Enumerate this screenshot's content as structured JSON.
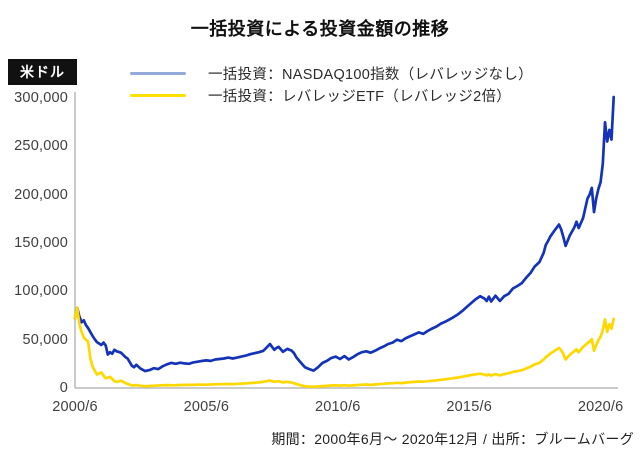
{
  "page": {
    "title": "一括投資による投資金額の推移",
    "unit_badge": "米ドル",
    "footer": "期間：2000年6月～ 2020年12月 / 出所：ブルームバーグ"
  },
  "legend": [
    {
      "label": "一括投資：NASDAQ100指数（レバレッジなし）",
      "swatch_color": "#93a9dc"
    },
    {
      "label": "一括投資：レバレッジETF（レバレッジ2倍）",
      "swatch_color": "#ffe000"
    }
  ],
  "colors": {
    "nasdaq_line": "#1433b8",
    "leveraged_etf_line": "#ffd800",
    "axis": "#b8b8b8",
    "badge_bg": "#111111",
    "badge_text": "#ffffff"
  },
  "chart_data": {
    "type": "line",
    "title": "一括投資による投資金額の推移",
    "ylabel": "米ドル",
    "grid": false,
    "legend_position": "top",
    "x_axis": {
      "unit": "months since 2000/6",
      "range_months": [
        0,
        246
      ],
      "tick_months": [
        0,
        60,
        120,
        180,
        240
      ],
      "tick_labels": [
        "2000/6",
        "2005/6",
        "2010/6",
        "2015/6",
        "2020/6"
      ]
    },
    "y_axis": {
      "range": [
        0,
        300000
      ],
      "tick_values": [
        0,
        50000,
        100000,
        150000,
        200000,
        250000,
        300000
      ],
      "tick_labels": [
        "0",
        "50,000",
        "100,000",
        "150,000",
        "200,000",
        "250,000",
        "300,000"
      ]
    },
    "series": [
      {
        "name": "一括投資：NASDAQ100指数（レバレッジなし）",
        "color": "#1433b8",
        "points": [
          [
            0,
            72000
          ],
          [
            1,
            83000
          ],
          [
            2,
            74000
          ],
          [
            3,
            68000
          ],
          [
            4,
            70000
          ],
          [
            5,
            65000
          ],
          [
            6,
            62000
          ],
          [
            8,
            54000
          ],
          [
            9,
            50500
          ],
          [
            10,
            47500
          ],
          [
            11,
            46000
          ],
          [
            12,
            44500
          ],
          [
            13,
            47000
          ],
          [
            14,
            44000
          ],
          [
            15,
            34500
          ],
          [
            16,
            37000
          ],
          [
            17,
            35500
          ],
          [
            18,
            39500
          ],
          [
            19,
            38000
          ],
          [
            21,
            36500
          ],
          [
            23,
            32000
          ],
          [
            24,
            30500
          ],
          [
            26,
            23000
          ],
          [
            27,
            21500
          ],
          [
            28,
            24000
          ],
          [
            30,
            20000
          ],
          [
            32,
            17500
          ],
          [
            34,
            18500
          ],
          [
            36,
            20500
          ],
          [
            38,
            19500
          ],
          [
            40,
            22500
          ],
          [
            42,
            24500
          ],
          [
            44,
            26000
          ],
          [
            46,
            25000
          ],
          [
            48,
            26200
          ],
          [
            50,
            25500
          ],
          [
            52,
            25000
          ],
          [
            54,
            26500
          ],
          [
            56,
            27200
          ],
          [
            58,
            28000
          ],
          [
            60,
            28500
          ],
          [
            62,
            28000
          ],
          [
            64,
            29500
          ],
          [
            66,
            30000
          ],
          [
            68,
            30500
          ],
          [
            70,
            31500
          ],
          [
            72,
            30500
          ],
          [
            74,
            31500
          ],
          [
            76,
            32500
          ],
          [
            78,
            33500
          ],
          [
            80,
            35000
          ],
          [
            82,
            36000
          ],
          [
            84,
            37000
          ],
          [
            86,
            38500
          ],
          [
            88,
            43000
          ],
          [
            89,
            45500
          ],
          [
            90,
            42500
          ],
          [
            91,
            39500
          ],
          [
            92,
            41500
          ],
          [
            93,
            42500
          ],
          [
            95,
            37500
          ],
          [
            97,
            40500
          ],
          [
            99,
            38500
          ],
          [
            100,
            36000
          ],
          [
            101,
            32000
          ],
          [
            103,
            26500
          ],
          [
            105,
            21500
          ],
          [
            107,
            19500
          ],
          [
            109,
            18000
          ],
          [
            111,
            21500
          ],
          [
            113,
            26000
          ],
          [
            115,
            28000
          ],
          [
            117,
            31000
          ],
          [
            119,
            32500
          ],
          [
            121,
            30000
          ],
          [
            123,
            33000
          ],
          [
            125,
            29500
          ],
          [
            127,
            32000
          ],
          [
            129,
            35000
          ],
          [
            131,
            37000
          ],
          [
            133,
            38000
          ],
          [
            135,
            36500
          ],
          [
            137,
            38500
          ],
          [
            139,
            41000
          ],
          [
            141,
            43000
          ],
          [
            143,
            45500
          ],
          [
            145,
            47000
          ],
          [
            147,
            50000
          ],
          [
            149,
            48500
          ],
          [
            151,
            51500
          ],
          [
            153,
            53500
          ],
          [
            155,
            55500
          ],
          [
            157,
            57500
          ],
          [
            159,
            56000
          ],
          [
            161,
            59000
          ],
          [
            163,
            61500
          ],
          [
            165,
            63500
          ],
          [
            167,
            66500
          ],
          [
            169,
            68500
          ],
          [
            171,
            71000
          ],
          [
            173,
            73500
          ],
          [
            175,
            76500
          ],
          [
            177,
            80000
          ],
          [
            179,
            84000
          ],
          [
            181,
            88000
          ],
          [
            183,
            92000
          ],
          [
            185,
            95000
          ],
          [
            187,
            92500
          ],
          [
            188,
            90000
          ],
          [
            189,
            94500
          ],
          [
            190,
            89500
          ],
          [
            192,
            95500
          ],
          [
            194,
            90000
          ],
          [
            196,
            95000
          ],
          [
            198,
            97500
          ],
          [
            200,
            103000
          ],
          [
            202,
            105500
          ],
          [
            204,
            108500
          ],
          [
            206,
            114000
          ],
          [
            208,
            119000
          ],
          [
            210,
            126000
          ],
          [
            212,
            130000
          ],
          [
            213,
            135000
          ],
          [
            214,
            140000
          ],
          [
            215,
            148000
          ],
          [
            216,
            152000
          ],
          [
            217,
            156500
          ],
          [
            219,
            163000
          ],
          [
            221,
            169000
          ],
          [
            222,
            164000
          ],
          [
            223,
            156000
          ],
          [
            224,
            147000
          ],
          [
            226,
            158000
          ],
          [
            228,
            166000
          ],
          [
            229,
            172000
          ],
          [
            230,
            165500
          ],
          [
            232,
            176000
          ],
          [
            234,
            196000
          ],
          [
            235,
            200000
          ],
          [
            236,
            207000
          ],
          [
            237,
            182000
          ],
          [
            238,
            196000
          ],
          [
            239,
            206000
          ],
          [
            240,
            213000
          ],
          [
            241,
            232000
          ],
          [
            242,
            275000
          ],
          [
            243,
            255000
          ],
          [
            244,
            267000
          ],
          [
            245,
            257000
          ],
          [
            246,
            301000
          ]
        ]
      },
      {
        "name": "一括投資：レバレッジETF（レバレッジ2倍）",
        "color": "#ffd800",
        "points": [
          [
            0,
            72000
          ],
          [
            1,
            83000
          ],
          [
            2,
            66000
          ],
          [
            3,
            58000
          ],
          [
            4,
            52000
          ],
          [
            6,
            48000
          ],
          [
            7,
            31000
          ],
          [
            8,
            22500
          ],
          [
            9,
            18000
          ],
          [
            10,
            14000
          ],
          [
            12,
            16000
          ],
          [
            14,
            10000
          ],
          [
            16,
            11500
          ],
          [
            18,
            7000
          ],
          [
            19,
            6200
          ],
          [
            21,
            7600
          ],
          [
            23,
            5200
          ],
          [
            24,
            4200
          ],
          [
            26,
            2600
          ],
          [
            28,
            3000
          ],
          [
            30,
            2300
          ],
          [
            32,
            1900
          ],
          [
            34,
            2100
          ],
          [
            36,
            2400
          ],
          [
            39,
            2700
          ],
          [
            42,
            3000
          ],
          [
            45,
            2800
          ],
          [
            48,
            3100
          ],
          [
            51,
            3300
          ],
          [
            54,
            3200
          ],
          [
            57,
            3500
          ],
          [
            60,
            3400
          ],
          [
            63,
            3700
          ],
          [
            66,
            3900
          ],
          [
            69,
            4100
          ],
          [
            72,
            4000
          ],
          [
            75,
            4400
          ],
          [
            78,
            4800
          ],
          [
            81,
            5300
          ],
          [
            84,
            5800
          ],
          [
            87,
            6800
          ],
          [
            89,
            7800
          ],
          [
            91,
            6400
          ],
          [
            93,
            7000
          ],
          [
            95,
            5800
          ],
          [
            97,
            6400
          ],
          [
            99,
            5600
          ],
          [
            101,
            4200
          ],
          [
            103,
            2800
          ],
          [
            105,
            1900
          ],
          [
            107,
            1500
          ],
          [
            109,
            1300
          ],
          [
            111,
            1600
          ],
          [
            113,
            2000
          ],
          [
            115,
            2300
          ],
          [
            117,
            2600
          ],
          [
            119,
            2800
          ],
          [
            121,
            2500
          ],
          [
            123,
            2900
          ],
          [
            125,
            2400
          ],
          [
            127,
            2700
          ],
          [
            129,
            3100
          ],
          [
            131,
            3400
          ],
          [
            133,
            3600
          ],
          [
            135,
            3200
          ],
          [
            137,
            3600
          ],
          [
            139,
            4000
          ],
          [
            141,
            4400
          ],
          [
            143,
            4800
          ],
          [
            145,
            5000
          ],
          [
            147,
            5400
          ],
          [
            149,
            5100
          ],
          [
            151,
            5600
          ],
          [
            153,
            6000
          ],
          [
            155,
            6300
          ],
          [
            157,
            6700
          ],
          [
            159,
            6400
          ],
          [
            161,
            7000
          ],
          [
            163,
            7500
          ],
          [
            165,
            7900
          ],
          [
            167,
            8500
          ],
          [
            169,
            9000
          ],
          [
            171,
            9600
          ],
          [
            173,
            10200
          ],
          [
            175,
            10900
          ],
          [
            177,
            11700
          ],
          [
            179,
            12600
          ],
          [
            181,
            13400
          ],
          [
            183,
            14200
          ],
          [
            185,
            14800
          ],
          [
            187,
            13900
          ],
          [
            188,
            13000
          ],
          [
            189,
            14200
          ],
          [
            190,
            12800
          ],
          [
            192,
            14400
          ],
          [
            194,
            13000
          ],
          [
            196,
            14500
          ],
          [
            198,
            15200
          ],
          [
            200,
            16800
          ],
          [
            202,
            17400
          ],
          [
            204,
            18400
          ],
          [
            206,
            20200
          ],
          [
            208,
            22000
          ],
          [
            210,
            24500
          ],
          [
            212,
            26000
          ],
          [
            214,
            29500
          ],
          [
            215,
            32000
          ],
          [
            216,
            33500
          ],
          [
            217,
            35500
          ],
          [
            219,
            38500
          ],
          [
            221,
            41500
          ],
          [
            222,
            39000
          ],
          [
            223,
            35000
          ],
          [
            224,
            29500
          ],
          [
            226,
            34500
          ],
          [
            228,
            38000
          ],
          [
            229,
            40000
          ],
          [
            230,
            37000
          ],
          [
            232,
            42500
          ],
          [
            234,
            46500
          ],
          [
            235,
            48000
          ],
          [
            236,
            50500
          ],
          [
            237,
            38500
          ],
          [
            238,
            44500
          ],
          [
            239,
            49500
          ],
          [
            240,
            53000
          ],
          [
            241,
            60000
          ],
          [
            242,
            71000
          ],
          [
            243,
            58000
          ],
          [
            244,
            66000
          ],
          [
            245,
            61500
          ],
          [
            246,
            71500
          ]
        ]
      }
    ]
  }
}
